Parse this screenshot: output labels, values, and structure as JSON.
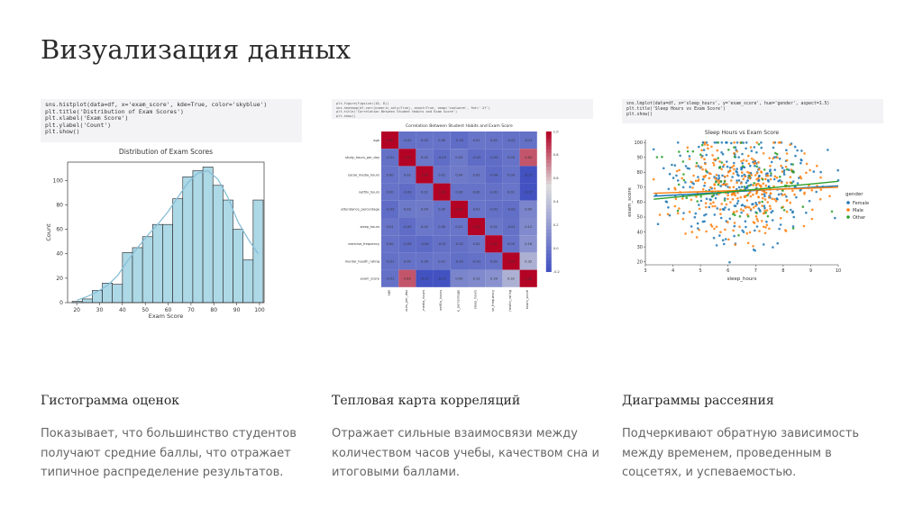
{
  "slide": {
    "title": "Визуализация данных"
  },
  "histogram": {
    "code": [
      "sns.histplot(data=df, x='exam_score', kde=True, color='skyblue')",
      "plt.title('Distribution of Exam Scores')",
      "plt.xlabel('Exam Score')",
      "plt.ylabel('Count')",
      "plt.show()"
    ],
    "caption_title": "Гистограмма оценок",
    "caption_body": "Показывает, что большинство студентов получают средние баллы, что отражает типичное распределение результатов."
  },
  "heatmap": {
    "code": [
      "plt.figure(figsize=(10, 8))",
      "sns.heatmap(df.corr(numeric_only=True), annot=True, cmap='coolwarm', fmt='.2f')",
      "plt.title('Correlation Between Student Habits and Exam Score')",
      "plt.show()"
    ],
    "caption_title": "Тепловая карта корреляций",
    "caption_body": "Отражает сильные взаимосвязи между количеством часов учебы, качеством сна и итоговыми баллами."
  },
  "scatter": {
    "code": [
      "sns.lmplot(data=df, x='sleep_hours', y='exam_score', hue='gender', aspect=1.5)",
      "plt.title('Sleep Hours vs Exam Score')",
      "plt.show()"
    ],
    "caption_title": "Диаграммы рассеяния",
    "caption_body": "Подчеркивают обратную зависимость между временем, проведенным в соцсетях, и успеваемостью."
  },
  "chart_data": [
    {
      "type": "bar",
      "title": "Distribution of Exam Scores",
      "xlabel": "Exam Score",
      "ylabel": "Count",
      "bin_starts": [
        18,
        22.4,
        26.8,
        31.2,
        35.6,
        40,
        44.4,
        48.8,
        53.2,
        57.6,
        62,
        66.4,
        70.8,
        75.2,
        79.6,
        84,
        88.4,
        92.8,
        97.2
      ],
      "bin_width": 4.4,
      "values": [
        1,
        3,
        10,
        16,
        15,
        41,
        45,
        54,
        64,
        64,
        85,
        103,
        108,
        111,
        96,
        84,
        60,
        35,
        84
      ],
      "kde": [
        2,
        5,
        9,
        14,
        22,
        34,
        45,
        55,
        64,
        74,
        86,
        98,
        106,
        108,
        101,
        86,
        66,
        52,
        40
      ],
      "xticks": [
        20,
        30,
        40,
        50,
        60,
        70,
        80,
        90,
        100
      ],
      "yticks": [
        0,
        20,
        40,
        60,
        80,
        100
      ],
      "xlim": [
        16,
        102
      ],
      "ylim": [
        0,
        115
      ],
      "color": "#add8e6"
    },
    {
      "type": "heatmap",
      "title": "Correlation Between Student Habits and Exam Score",
      "labels": [
        "age",
        "study_hours_per_day",
        "social_media_hours",
        "netflix_hours",
        "attendance_percentage",
        "sleep_hours",
        "exercise_frequency",
        "mental_health_rating",
        "exam_score"
      ],
      "matrix": [
        [
          1.0,
          -0.01,
          0.0,
          -0.0,
          -0.03,
          0.01,
          -0.0,
          -0.01,
          -0.01
        ],
        [
          -0.01,
          1.0,
          0.02,
          -0.03,
          0.03,
          -0.03,
          -0.03,
          -0.0,
          0.83
        ],
        [
          0.0,
          0.02,
          1.0,
          0.01,
          0.04,
          0.02,
          -0.04,
          0.0,
          -0.17
        ],
        [
          -0.0,
          -0.03,
          0.01,
          1.0,
          -0.0,
          -0.0,
          -0.01,
          0.01,
          -0.17
        ],
        [
          -0.03,
          0.03,
          0.04,
          -0.0,
          1.0,
          0.01,
          -0.01,
          -0.02,
          0.09
        ],
        [
          0.01,
          -0.03,
          0.02,
          -0.0,
          0.01,
          1.0,
          0.02,
          -0.01,
          0.12
        ],
        [
          -0.0,
          -0.03,
          -0.04,
          -0.01,
          -0.01,
          0.02,
          1.0,
          -0.0,
          0.16
        ],
        [
          -0.01,
          -0.0,
          0.0,
          0.01,
          -0.02,
          -0.01,
          -0.0,
          1.0,
          0.32
        ],
        [
          -0.01,
          0.83,
          -0.17,
          -0.17,
          0.09,
          0.12,
          0.16,
          0.32,
          1.0
        ]
      ],
      "colorbar_ticks": [
        "1.0",
        "0.8",
        "0.6",
        "0.4",
        "0.2",
        "0.0",
        "-0.2"
      ],
      "vmin": -0.2,
      "vmax": 1.0
    },
    {
      "type": "scatter",
      "title": "Sleep Hours vs Exam Score",
      "xlabel": "sleep_hours",
      "ylabel": "exam_score",
      "xlim": [
        3,
        10
      ],
      "ylim": [
        18,
        102
      ],
      "xticks": [
        3,
        4,
        5,
        6,
        7,
        8,
        9,
        10
      ],
      "yticks": [
        20,
        30,
        40,
        50,
        60,
        70,
        80,
        90,
        100
      ],
      "legend_title": "gender",
      "series": [
        {
          "name": "Female",
          "color": "#1f77b4",
          "fit": [
            [
              3.3,
              64
            ],
            [
              10,
              71
            ]
          ]
        },
        {
          "name": "Male",
          "color": "#ff7f0e",
          "fit": [
            [
              3.3,
              66
            ],
            [
              10,
              70
            ]
          ]
        },
        {
          "name": "Other",
          "color": "#2ca02c",
          "fit": [
            [
              3.3,
              62
            ],
            [
              10,
              74
            ]
          ]
        }
      ]
    }
  ]
}
